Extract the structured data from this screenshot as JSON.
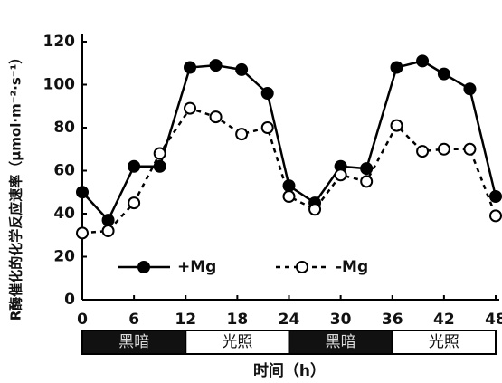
{
  "chart_data": {
    "type": "line",
    "x": [
      0,
      3,
      6,
      9,
      12.5,
      15.5,
      18.5,
      21.5,
      24,
      27,
      30,
      33,
      36.5,
      39.5,
      42,
      45,
      48
    ],
    "series": [
      {
        "name": "+Mg",
        "color": "#000000",
        "linestyle": "solid",
        "marker": "filled",
        "values": [
          50,
          37,
          62,
          62,
          108,
          109,
          107,
          96,
          53,
          45,
          62,
          61,
          108,
          111,
          105,
          98,
          48
        ]
      },
      {
        "name": "-Mg",
        "color": "#000000",
        "linestyle": "dashed",
        "marker": "open",
        "values": [
          31,
          32,
          45,
          68,
          89,
          85,
          77,
          80,
          48,
          42,
          58,
          55,
          81,
          69,
          70,
          70,
          39
        ]
      }
    ],
    "xlim": [
      0,
      48
    ],
    "xticks": [
      0,
      6,
      12,
      18,
      24,
      30,
      36,
      42,
      48
    ],
    "ylim": [
      0,
      120
    ],
    "yticks": [
      0,
      20,
      40,
      60,
      80,
      100,
      120
    ],
    "xlabel": "时间（h）",
    "ylabel": "R酶催化的化学反应速率（μmol·m⁻²·s⁻¹）",
    "periods": [
      {
        "label": "黑暗",
        "start": 0,
        "end": 12,
        "dark": true
      },
      {
        "label": "光照",
        "start": 12,
        "end": 24,
        "dark": false
      },
      {
        "label": "黑暗",
        "start": 24,
        "end": 36,
        "dark": true
      },
      {
        "label": "光照",
        "start": 36,
        "end": 48,
        "dark": false
      }
    ]
  }
}
